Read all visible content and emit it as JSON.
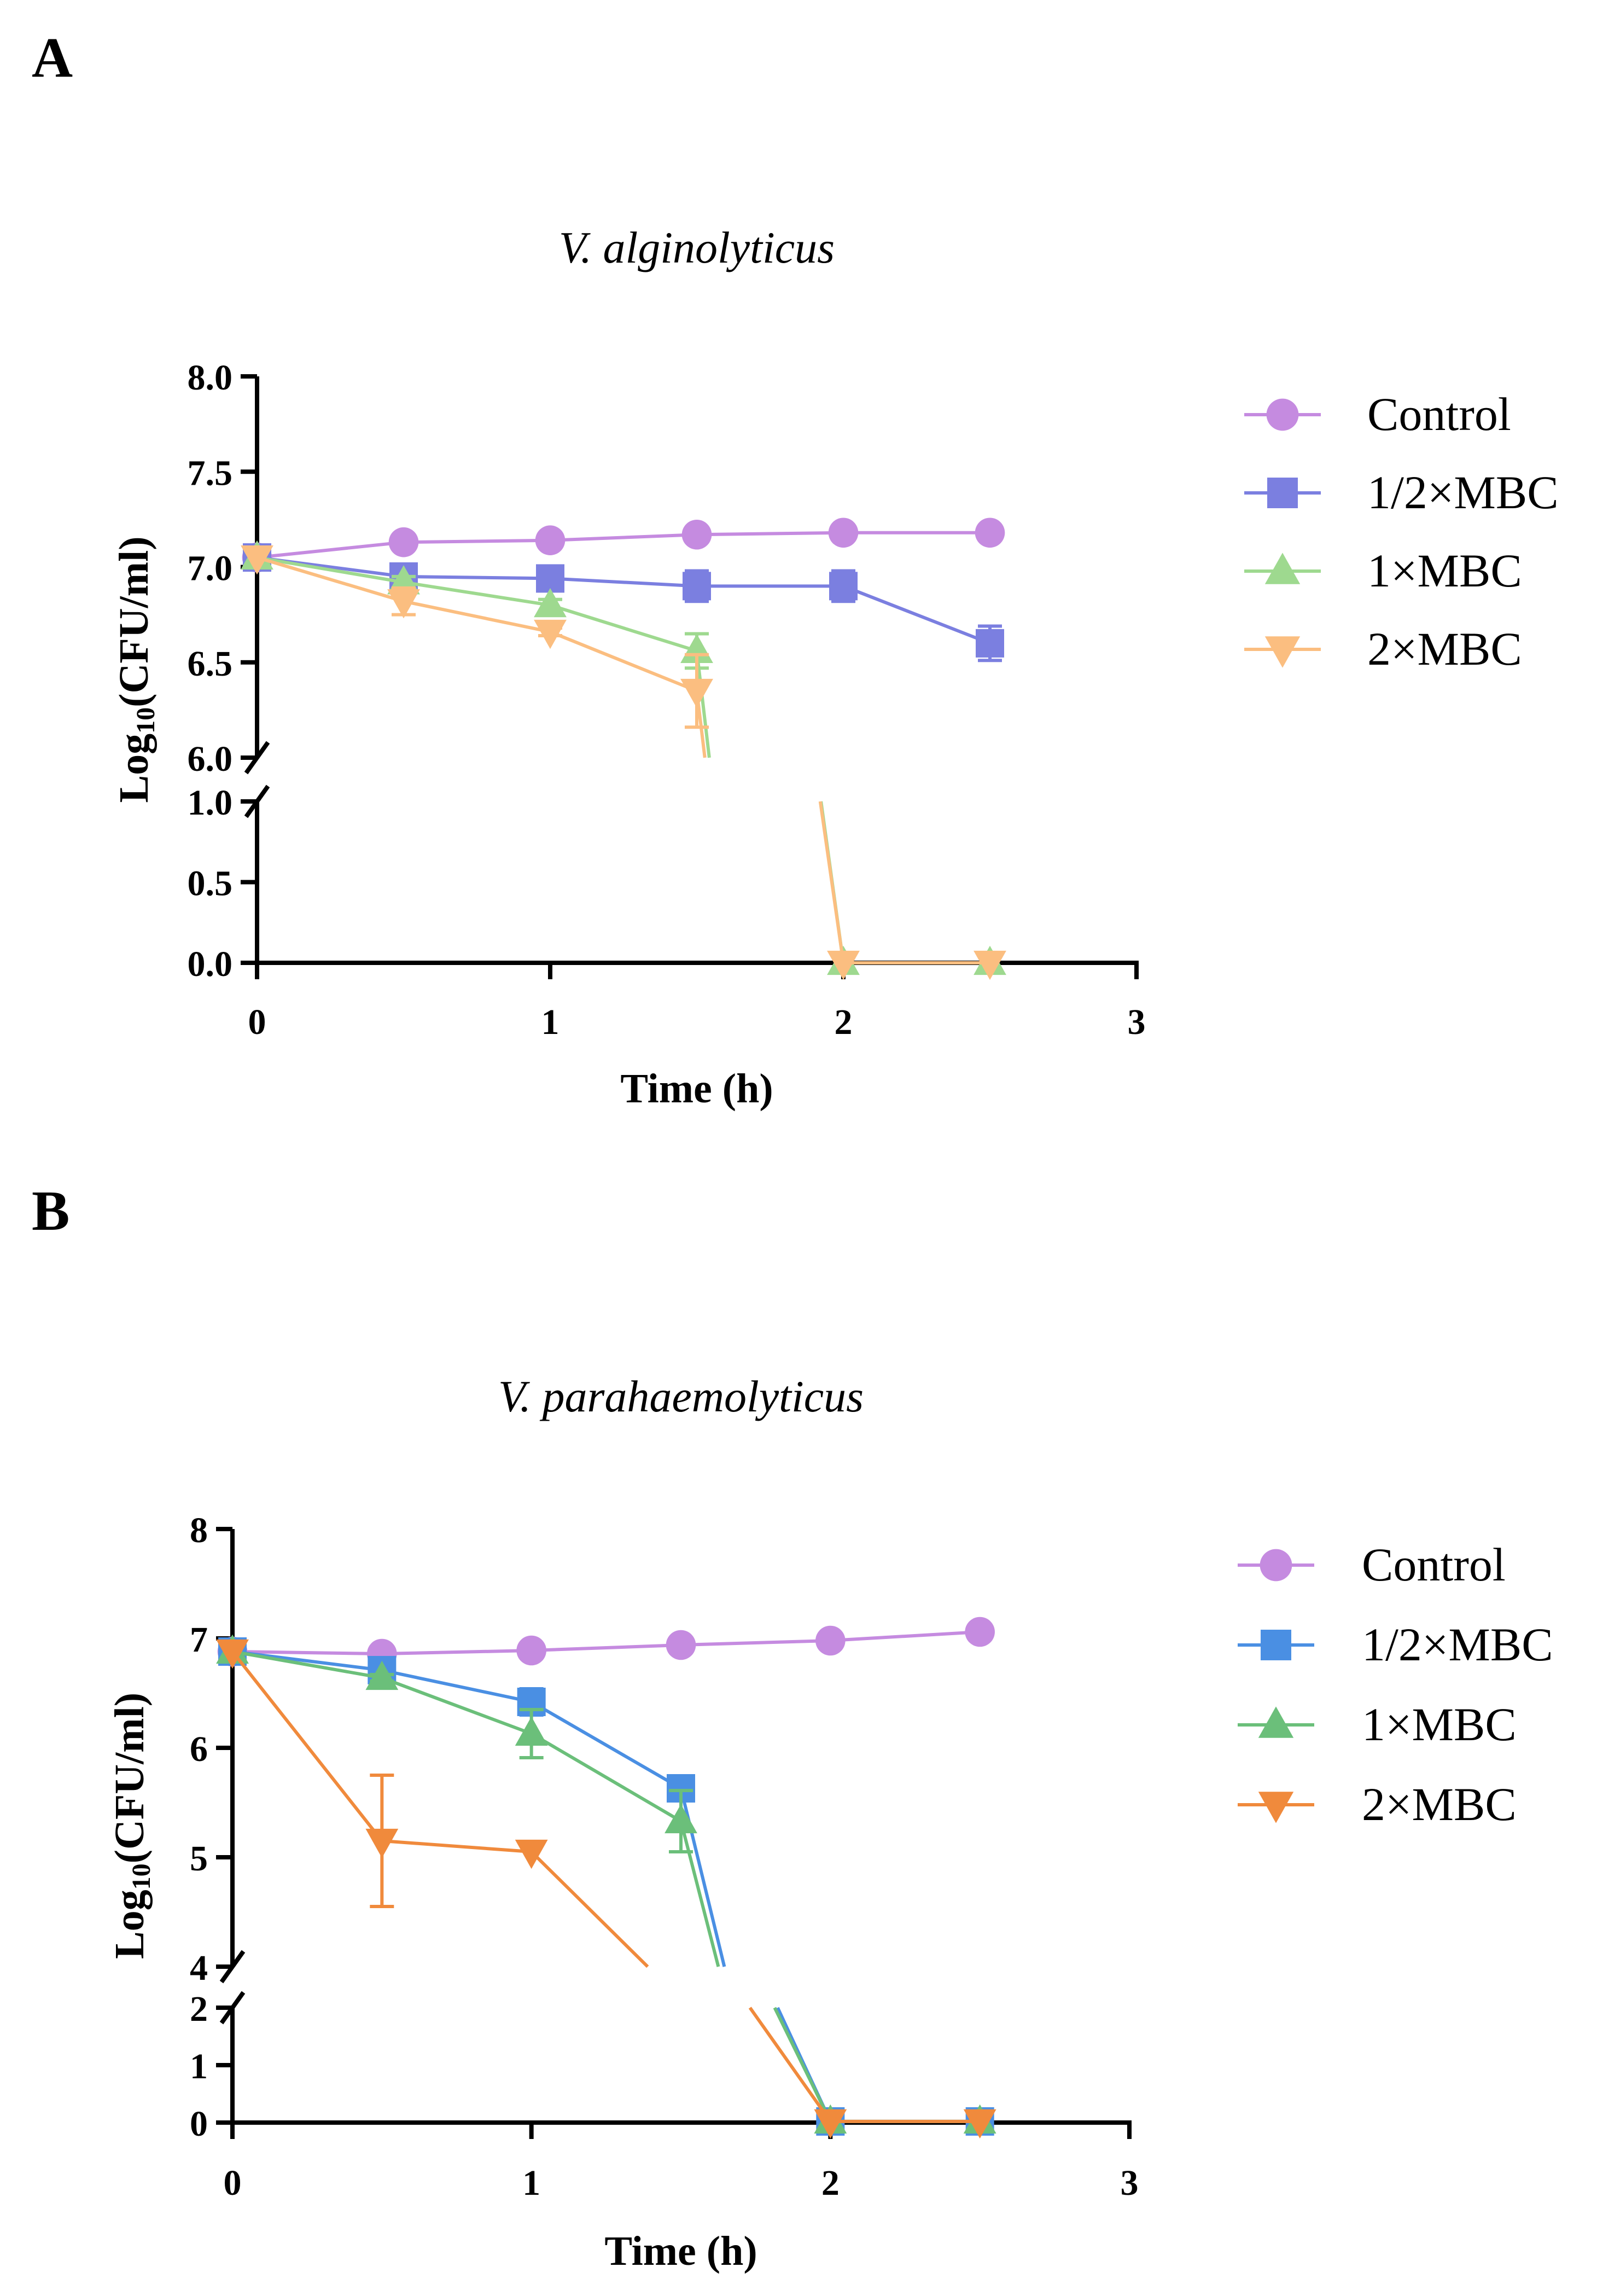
{
  "chart_data": [
    {
      "type": "line",
      "panel_label": "A",
      "title": "V. alginolyticus",
      "xlabel": "Time (h)",
      "ylabel": "Log10(CFU/ml)",
      "ylabel_parts": {
        "pre": "Log",
        "sub": "10",
        "post": "(CFU/ml)"
      },
      "x_ticks": [
        "0",
        "1",
        "2",
        "3"
      ],
      "xlim": [
        0,
        3
      ],
      "y_upper": {
        "range": [
          6.0,
          8.0
        ],
        "ticks": [
          "6.0",
          "6.5",
          "7.0",
          "7.5",
          "8.0"
        ],
        "values": [
          6.0,
          6.5,
          7.0,
          7.5,
          8.0
        ]
      },
      "y_lower": {
        "range": [
          0.0,
          1.0
        ],
        "ticks": [
          "0.0",
          "0.5",
          "1.0"
        ],
        "values": [
          0.0,
          0.5,
          1.0
        ]
      },
      "axis_break": true,
      "legend_position": "right",
      "series": [
        {
          "name": "Control",
          "marker": "circle",
          "color": "#c58be0",
          "x": [
            0,
            0.5,
            1,
            1.5,
            2,
            2.5
          ],
          "y": [
            7.05,
            7.13,
            7.14,
            7.17,
            7.18,
            7.18
          ],
          "err": [
            0,
            0,
            0,
            0,
            0,
            0
          ]
        },
        {
          "name": "1/2×MBC",
          "marker": "square",
          "color": "#7b7fe0",
          "x": [
            0,
            0.5,
            1,
            1.5,
            2,
            2.5
          ],
          "y": [
            7.05,
            6.95,
            6.94,
            6.9,
            6.9,
            6.6
          ],
          "err": [
            0,
            0.05,
            0.03,
            0.08,
            0.08,
            0.09
          ]
        },
        {
          "name": "1×MBC",
          "marker": "triangle-up",
          "color": "#9ed98f",
          "x": [
            0,
            0.5,
            1,
            1.5,
            2,
            2.5
          ],
          "y": [
            7.05,
            6.92,
            6.8,
            6.56,
            0,
            0
          ],
          "err": [
            0,
            0.03,
            0.03,
            0.09,
            0,
            0
          ]
        },
        {
          "name": "2×MBC",
          "marker": "triangle-down",
          "color": "#fbbe80",
          "x": [
            0,
            0.5,
            1,
            1.5,
            2,
            2.5
          ],
          "y": [
            7.05,
            6.82,
            6.66,
            6.35,
            0,
            0
          ],
          "err": [
            0,
            0.07,
            0.02,
            0.19,
            0,
            0
          ]
        }
      ]
    },
    {
      "type": "line",
      "panel_label": "B",
      "title": "V. parahaemolyticus",
      "xlabel": "Time (h)",
      "ylabel": "Log10(CFU/ml)",
      "ylabel_parts": {
        "pre": "Log",
        "sub": "10",
        "post": "(CFU/ml)"
      },
      "x_ticks": [
        "0",
        "1",
        "2",
        "3"
      ],
      "xlim": [
        0,
        3
      ],
      "y_upper": {
        "range": [
          4,
          8
        ],
        "ticks": [
          "4",
          "5",
          "6",
          "7",
          "8"
        ],
        "values": [
          4,
          5,
          6,
          7,
          8
        ]
      },
      "y_lower": {
        "range": [
          0,
          2
        ],
        "ticks": [
          "0",
          "1",
          "2"
        ],
        "values": [
          0,
          1,
          2
        ]
      },
      "axis_break": true,
      "legend_position": "right",
      "series": [
        {
          "name": "Control",
          "marker": "circle",
          "color": "#c58be0",
          "x": [
            0,
            0.5,
            1,
            1.5,
            2,
            2.5
          ],
          "y": [
            6.88,
            6.86,
            6.89,
            6.94,
            6.98,
            7.06
          ],
          "err": [
            0,
            0,
            0,
            0,
            0,
            0
          ]
        },
        {
          "name": "1/2×MBC",
          "marker": "square",
          "color": "#4a8fe3",
          "x": [
            0,
            0.5,
            1,
            1.5,
            2,
            2.5
          ],
          "y": [
            6.88,
            6.71,
            6.42,
            5.63,
            0.02,
            0.02
          ],
          "err": [
            0,
            0.05,
            0.12,
            0.1,
            0,
            0
          ]
        },
        {
          "name": "1×MBC",
          "marker": "triangle-up",
          "color": "#6bbf7a",
          "x": [
            0,
            0.5,
            1,
            1.5,
            2,
            2.5
          ],
          "y": [
            6.88,
            6.64,
            6.13,
            5.33,
            0.02,
            0.02
          ],
          "err": [
            0,
            0.03,
            0.22,
            0.28,
            0,
            0
          ]
        },
        {
          "name": "2×MBC",
          "marker": "triangle-down",
          "color": "#f08a3c",
          "x": [
            0,
            0.5,
            1,
            1.5,
            2,
            2.5
          ],
          "y": [
            6.88,
            5.15,
            5.05,
            3.7,
            0.02,
            0.02
          ],
          "err": [
            0,
            0.6,
            0,
            0,
            0,
            0
          ]
        }
      ]
    }
  ]
}
